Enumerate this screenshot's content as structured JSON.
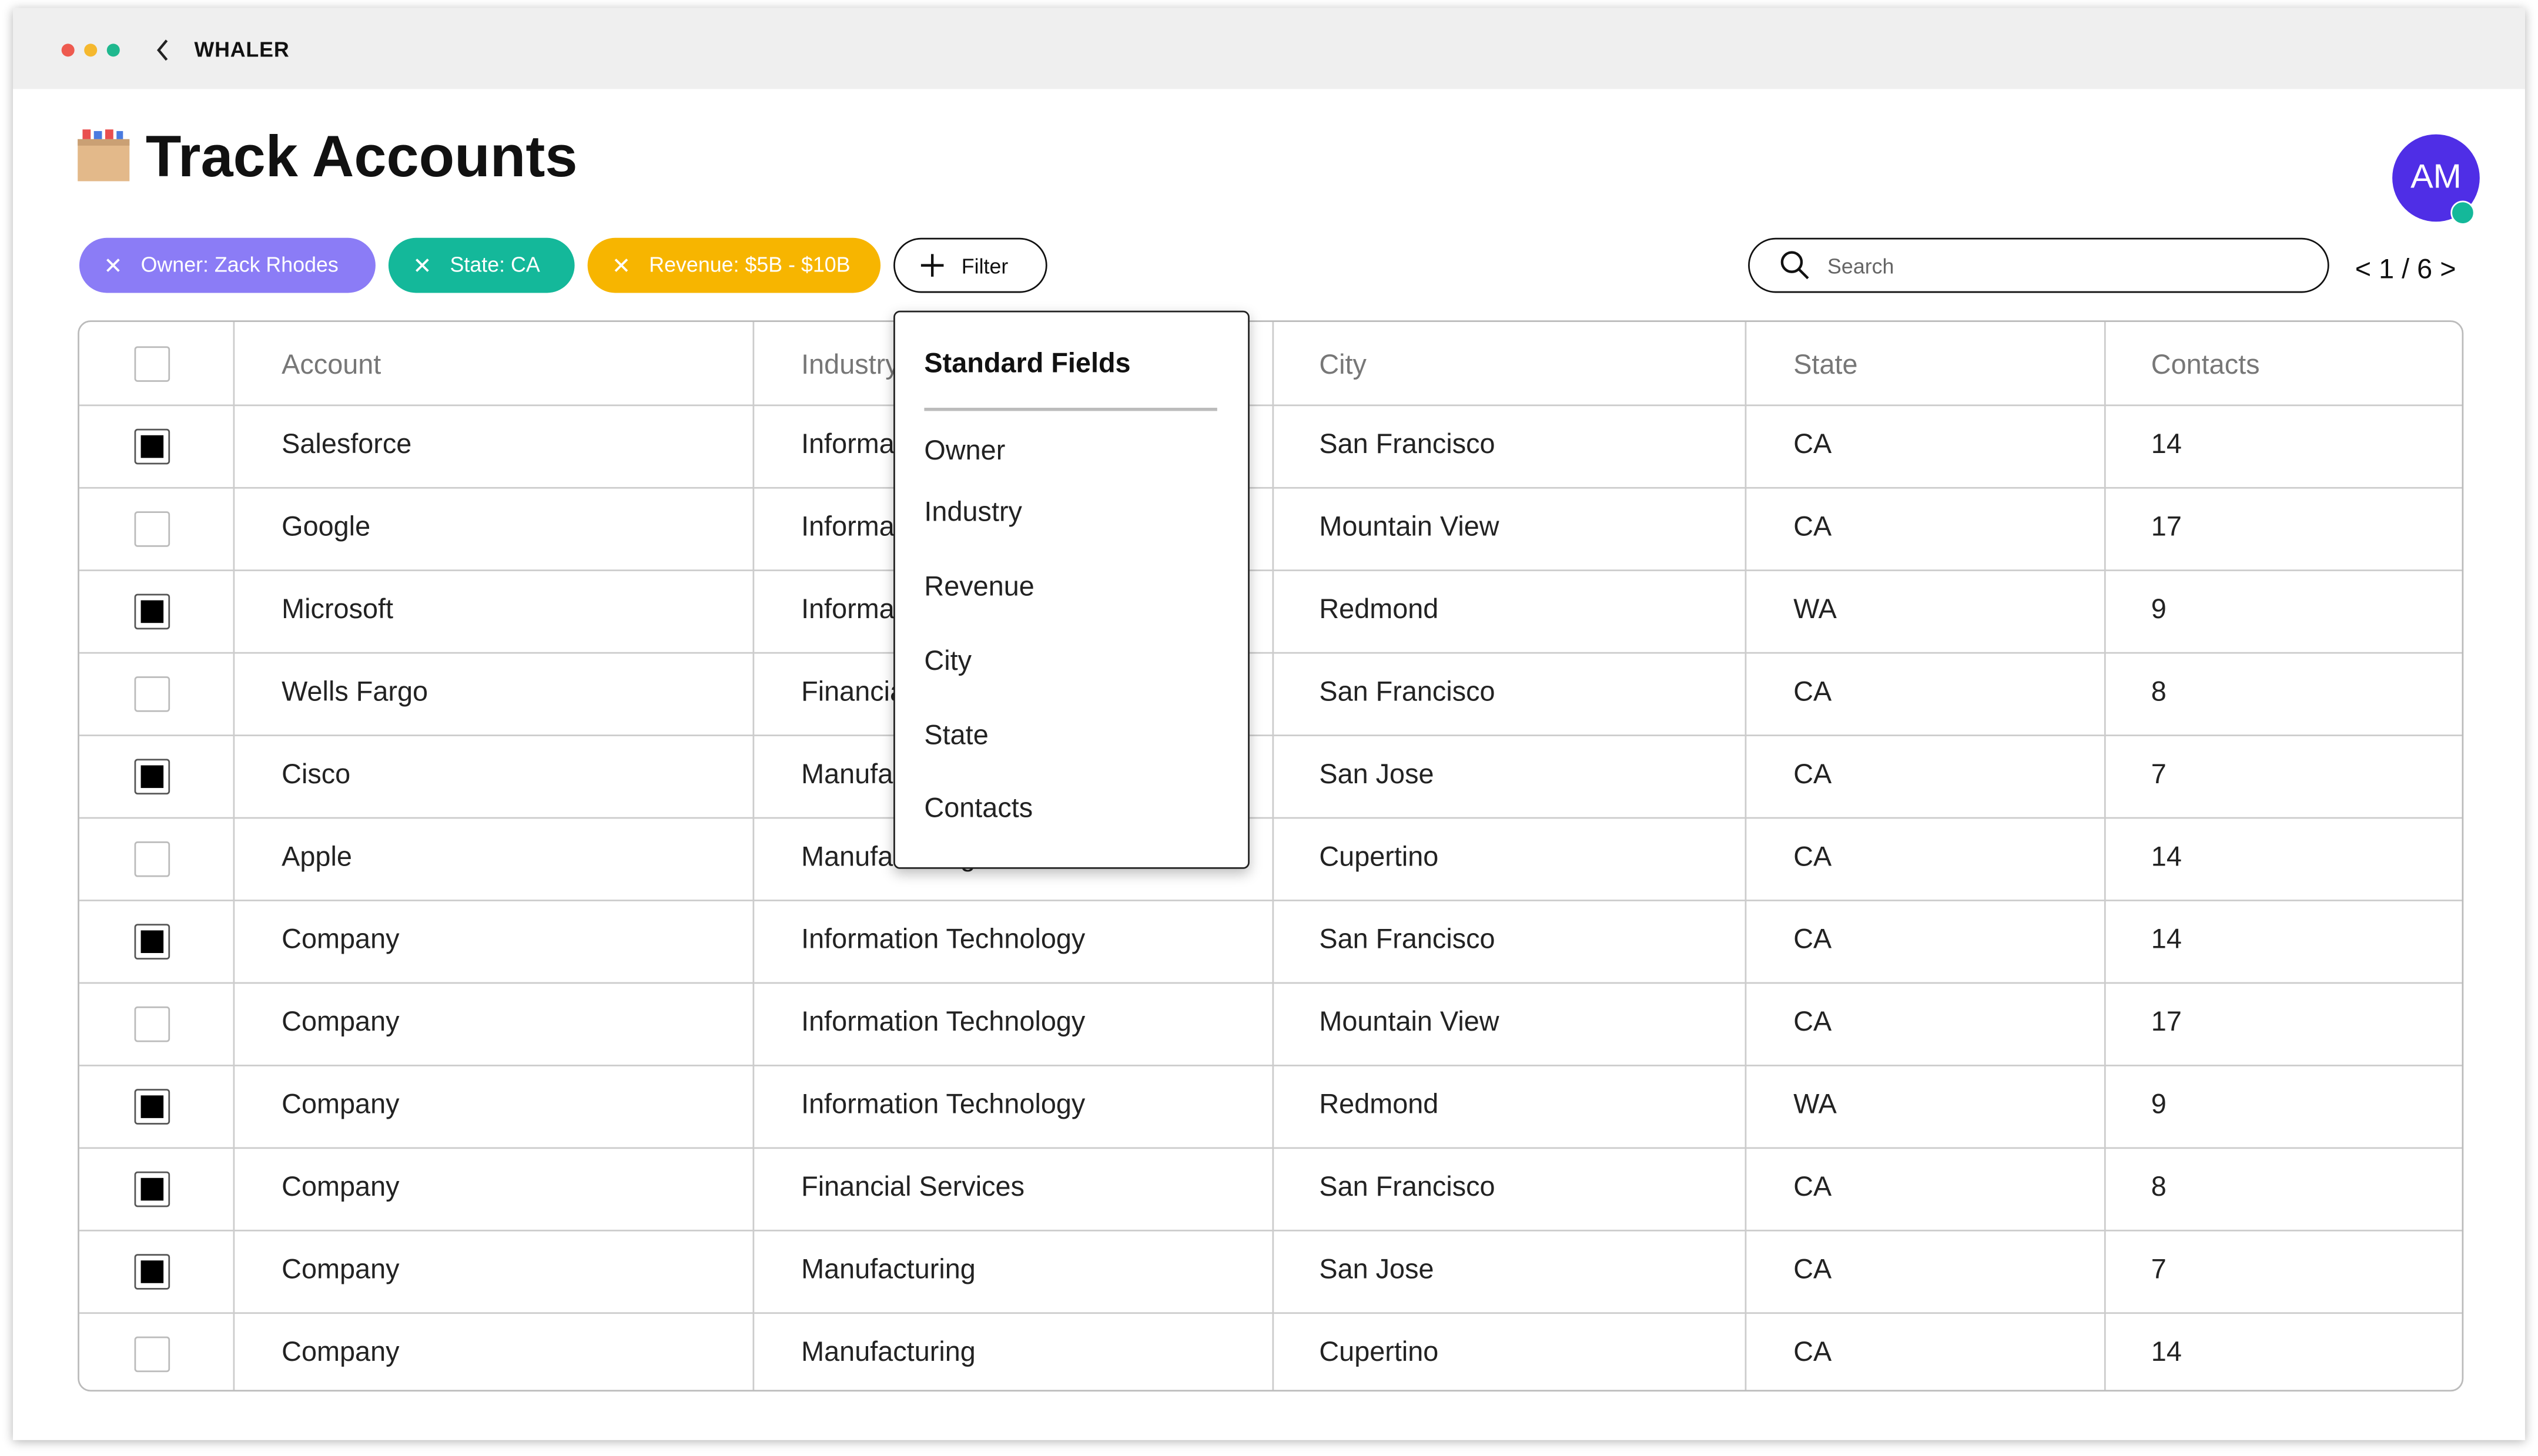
{
  "window": {
    "title": "WHALER"
  },
  "header": {
    "title": "Track Accounts",
    "avatar": "AM"
  },
  "filters": [
    "Owner: Zack Rhodes",
    "State: CA",
    "Revenue: $5B - $10B"
  ],
  "filter_button": "Filter",
  "search": {
    "placeholder": "Search"
  },
  "pagination": "< 1 / 6 >",
  "table": {
    "columns": [
      "Account",
      "Industry",
      "City",
      "State",
      "Contacts"
    ],
    "rows": [
      {
        "checked": true,
        "cells": [
          "Salesforce",
          "Information Technology",
          "San Francisco",
          "CA",
          14
        ]
      },
      {
        "checked": false,
        "cells": [
          "Google",
          "Information Technology",
          "Mountain View",
          "CA",
          17
        ]
      },
      {
        "checked": true,
        "cells": [
          "Microsoft",
          "Information Technology",
          "Redmond",
          "WA",
          9
        ]
      },
      {
        "checked": false,
        "cells": [
          "Wells Fargo",
          "Financial Services",
          "San Francisco",
          "CA",
          8
        ]
      },
      {
        "checked": true,
        "cells": [
          "Cisco",
          "Manufacturing",
          "San Jose",
          "CA",
          7
        ]
      },
      {
        "checked": false,
        "cells": [
          "Apple",
          "Manufacturing",
          "Cupertino",
          "CA",
          14
        ]
      },
      {
        "checked": true,
        "cells": [
          "Company",
          "Information Technology",
          "San Francisco",
          "CA",
          14
        ]
      },
      {
        "checked": false,
        "cells": [
          "Company",
          "Information Technology",
          "Mountain View",
          "CA",
          17
        ]
      },
      {
        "checked": true,
        "cells": [
          "Company",
          "Information Technology",
          "Redmond",
          "WA",
          9
        ]
      },
      {
        "checked": true,
        "cells": [
          "Company",
          "Financial Services",
          "San Francisco",
          "CA",
          8
        ]
      },
      {
        "checked": true,
        "cells": [
          "Company",
          "Manufacturing",
          "San Jose",
          "CA",
          7
        ]
      },
      {
        "checked": false,
        "cells": [
          "Company",
          "Manufacturing",
          "Cupertino",
          "CA",
          14
        ]
      }
    ]
  },
  "dropdown": {
    "title": "Standard Fields",
    "items": [
      "Owner",
      "Industry",
      "Revenue",
      "City",
      "State",
      "Contacts"
    ]
  }
}
